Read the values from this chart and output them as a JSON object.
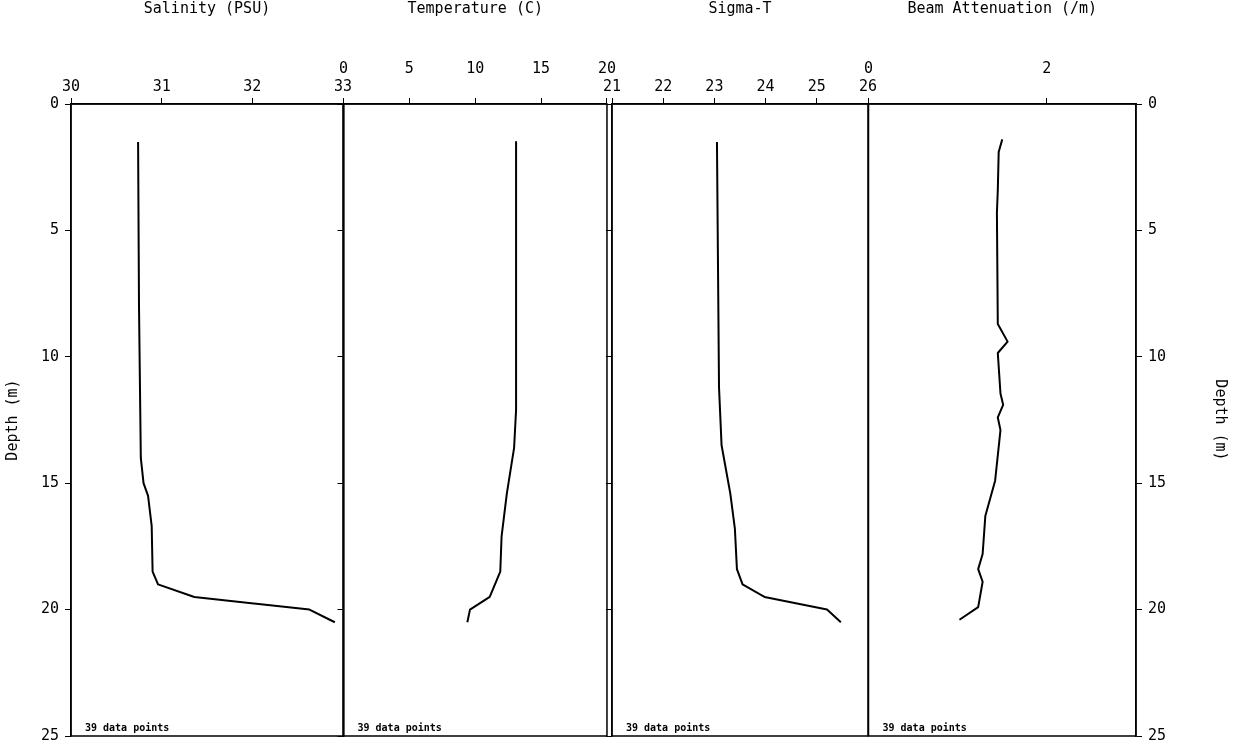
{
  "chart_data": [
    {
      "type": "line",
      "xlabel": "Salinity (PSU)",
      "ylabel": "Depth (m)",
      "xlim": [
        30,
        33
      ],
      "xticks": [
        30,
        31,
        32,
        33
      ],
      "ylim": [
        25,
        0
      ],
      "yticks": [
        0,
        5,
        10,
        15,
        20,
        25
      ],
      "grid": false,
      "legend": false,
      "annotations": [
        "39 data points"
      ],
      "series": [
        {
          "color": "#000000",
          "x": [
            30.74,
            30.75,
            30.77,
            30.8,
            30.85,
            30.89,
            30.9,
            30.96,
            31.36,
            32.63,
            32.91
          ],
          "values": [
            1.5,
            8,
            14,
            15,
            15.5,
            16.7,
            18.5,
            19.0,
            19.5,
            20.0,
            20.5
          ]
        }
      ]
    },
    {
      "type": "line",
      "xlabel": "Temperature (C)",
      "xlim": [
        0,
        20
      ],
      "xticks": [
        0,
        5,
        10,
        15,
        20
      ],
      "ylim": [
        25,
        0
      ],
      "yticks": [
        0,
        5,
        10,
        15,
        20,
        25
      ],
      "tick_labels": "x",
      "grid": false,
      "legend": false,
      "annotations": [
        "39 data points"
      ],
      "series": [
        {
          "color": "#000000",
          "x": [
            13.1,
            13.1,
            12.95,
            12.4,
            12.0,
            11.9,
            11.1,
            9.6,
            9.4
          ],
          "values": [
            1.5,
            12.1,
            13.6,
            15.4,
            17.1,
            18.5,
            19.5,
            20.0,
            20.5
          ]
        }
      ]
    },
    {
      "type": "line",
      "xlabel": "Sigma-T",
      "xlim": [
        21,
        26
      ],
      "xticks": [
        21,
        22,
        23,
        24,
        25,
        26
      ],
      "ylim": [
        25,
        0
      ],
      "yticks": [
        0,
        5,
        10,
        15,
        20,
        25
      ],
      "tick_labels": "x",
      "grid": false,
      "legend": false,
      "annotations": [
        "39 data points"
      ],
      "series": [
        {
          "color": "#000000",
          "x": [
            23.05,
            23.09,
            23.14,
            23.31,
            23.4,
            23.44,
            23.55,
            23.98,
            25.2,
            25.47
          ],
          "values": [
            1.5,
            11.2,
            13.5,
            15.4,
            16.8,
            18.4,
            19.0,
            19.5,
            20.0,
            20.5
          ]
        }
      ]
    },
    {
      "type": "line",
      "xlabel": "Beam Attenuation (/m)",
      "ylabel": "Depth (m)",
      "xlim": [
        0,
        3
      ],
      "xticks": [
        0,
        2
      ],
      "ylim": [
        25,
        0
      ],
      "yticks": [
        0,
        5,
        10,
        15,
        20,
        25
      ],
      "grid": false,
      "legend": false,
      "annotations": [
        "39 data points"
      ],
      "series": [
        {
          "color": "#000000",
          "x": [
            1.5,
            1.46,
            1.45,
            1.44,
            1.45,
            1.56,
            1.45,
            1.48,
            1.51,
            1.45,
            1.48,
            1.42,
            1.31,
            1.28,
            1.23,
            1.28,
            1.23,
            1.02
          ],
          "values": [
            1.4,
            1.9,
            3.4,
            4.3,
            8.7,
            9.4,
            9.85,
            11.45,
            11.9,
            12.4,
            12.9,
            14.9,
            16.3,
            17.8,
            18.4,
            18.9,
            19.9,
            20.4
          ]
        }
      ]
    }
  ]
}
